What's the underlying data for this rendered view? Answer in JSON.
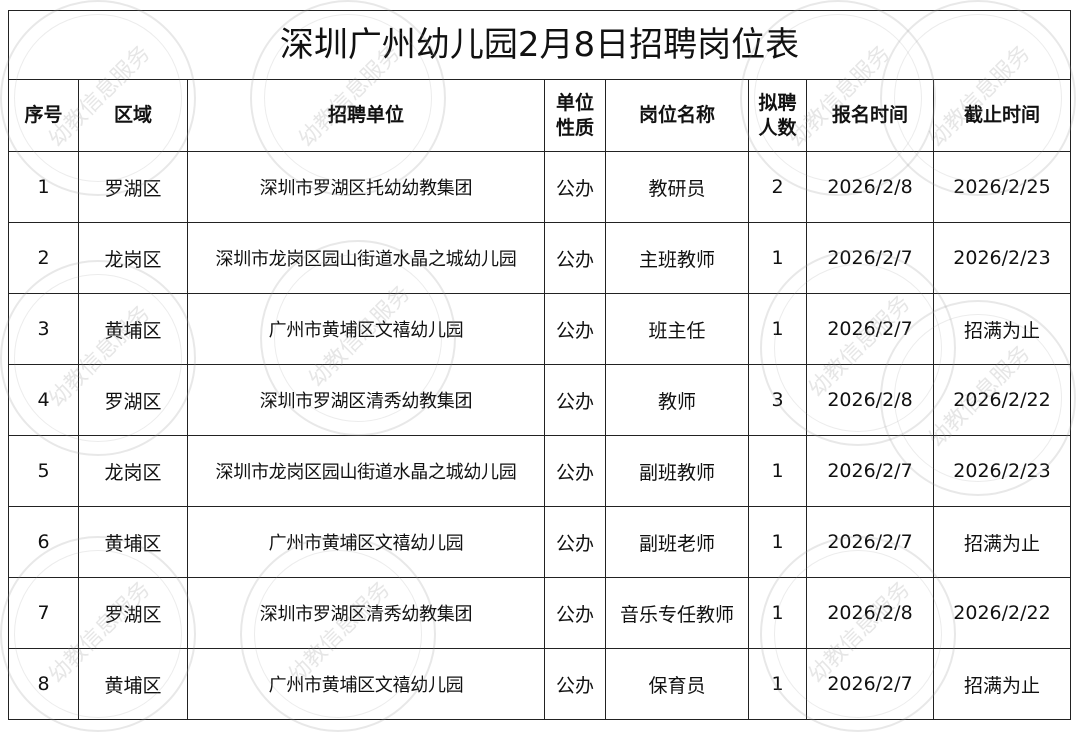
{
  "title": "深圳广州幼儿园2月8日招聘岗位表",
  "watermark": "幼教信息服务",
  "headers": {
    "index": "序号",
    "district": "区域",
    "employer": "招聘单位",
    "nature": "单位性质",
    "position": "岗位名称",
    "count": "拟聘人数",
    "start": "报名时间",
    "end": "截止时间"
  },
  "rows": [
    {
      "index": "1",
      "district": "罗湖区",
      "employer": "深圳市罗湖区托幼幼教集团",
      "nature": "公办",
      "position": "教研员",
      "count": "2",
      "start": "2026/2/8",
      "end": "2026/2/25"
    },
    {
      "index": "2",
      "district": "龙岗区",
      "employer": "深圳市龙岗区园山街道水晶之城幼儿园",
      "nature": "公办",
      "position": "主班教师",
      "count": "1",
      "start": "2026/2/7",
      "end": "2026/2/23"
    },
    {
      "index": "3",
      "district": "黄埔区",
      "employer": "广州市黄埔区文禧幼儿园",
      "nature": "公办",
      "position": "班主任",
      "count": "1",
      "start": "2026/2/7",
      "end": "招满为止"
    },
    {
      "index": "4",
      "district": "罗湖区",
      "employer": "深圳市罗湖区清秀幼教集团",
      "nature": "公办",
      "position": "教师",
      "count": "3",
      "start": "2026/2/8",
      "end": "2026/2/22"
    },
    {
      "index": "5",
      "district": "龙岗区",
      "employer": "深圳市龙岗区园山街道水晶之城幼儿园",
      "nature": "公办",
      "position": "副班教师",
      "count": "1",
      "start": "2026/2/7",
      "end": "2026/2/23"
    },
    {
      "index": "6",
      "district": "黄埔区",
      "employer": "广州市黄埔区文禧幼儿园",
      "nature": "公办",
      "position": "副班老师",
      "count": "1",
      "start": "2026/2/7",
      "end": "招满为止"
    },
    {
      "index": "7",
      "district": "罗湖区",
      "employer": "深圳市罗湖区清秀幼教集团",
      "nature": "公办",
      "position": "音乐专任教师",
      "count": "1",
      "start": "2026/2/8",
      "end": "2026/2/22"
    },
    {
      "index": "8",
      "district": "黄埔区",
      "employer": "广州市黄埔区文禧幼儿园",
      "nature": "公办",
      "position": "保育员",
      "count": "1",
      "start": "2026/2/7",
      "end": "招满为止"
    }
  ]
}
